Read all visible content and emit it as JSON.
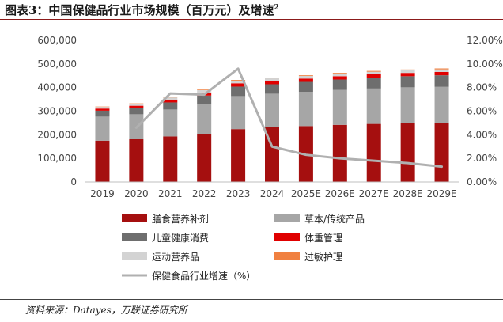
{
  "header": {
    "title": "图表3：中国保健品行业市场规模（百万元）及增速",
    "title_sup": "2"
  },
  "footer": {
    "source": "资料来源：Datayes，万联证券研究所"
  },
  "chart_data": {
    "type": "bar",
    "stacked": true,
    "title": "中国保健品行业市场规模（百万元）及增速",
    "categories": [
      "2019",
      "2020",
      "2021",
      "2022",
      "2023",
      "2024",
      "2025E",
      "2026E",
      "2027E",
      "2028E",
      "2029E"
    ],
    "ylim": [
      0,
      600000
    ],
    "yticks": [
      "0",
      "100,000",
      "200,000",
      "300,000",
      "400,000",
      "500,000",
      "600,000"
    ],
    "y2lim": [
      0,
      12
    ],
    "y2ticks": [
      "0.00%",
      "2.00%",
      "4.00%",
      "6.00%",
      "8.00%",
      "10.00%",
      "12.00%"
    ],
    "legend_position": "bottom",
    "series": [
      {
        "name": "膳食营养补剂",
        "kind": "bar",
        "color": "#a50f0f",
        "values": [
          175000,
          181000,
          193000,
          204000,
          224000,
          233000,
          237000,
          242000,
          246000,
          249000,
          251000
        ]
      },
      {
        "name": "草本/传统产品",
        "kind": "bar",
        "color": "#a6a6a6",
        "values": [
          102000,
          106000,
          114000,
          127000,
          140000,
          141000,
          145000,
          148000,
          150000,
          152000,
          152000
        ]
      },
      {
        "name": "儿童健康消费",
        "kind": "bar",
        "color": "#6e6e6e",
        "values": [
          25000,
          26000,
          30000,
          35000,
          40000,
          40000,
          42000,
          44000,
          46000,
          47000,
          49000
        ]
      },
      {
        "name": "体重管理",
        "kind": "bar",
        "color": "#e00000",
        "values": [
          9000,
          10000,
          12000,
          13000,
          14000,
          14000,
          14000,
          14000,
          14000,
          14000,
          14000
        ]
      },
      {
        "name": "运动营养品",
        "kind": "bar",
        "color": "#d3d3d3",
        "values": [
          7000,
          8000,
          9000,
          10000,
          11000,
          11000,
          11000,
          11000,
          11000,
          11000,
          11000
        ]
      },
      {
        "name": "过敏护理",
        "kind": "bar",
        "color": "#f08040",
        "values": [
          1500,
          2000,
          2000,
          2500,
          3000,
          3000,
          3000,
          3000,
          3500,
          3500,
          4000
        ]
      },
      {
        "name": "保健食品行业增速（%）",
        "kind": "line",
        "axis": "right",
        "color": "#b0b0b0",
        "values": [
          null,
          4.6,
          7.5,
          7.4,
          9.6,
          3.0,
          2.3,
          2.0,
          1.8,
          1.6,
          1.3
        ]
      }
    ]
  }
}
